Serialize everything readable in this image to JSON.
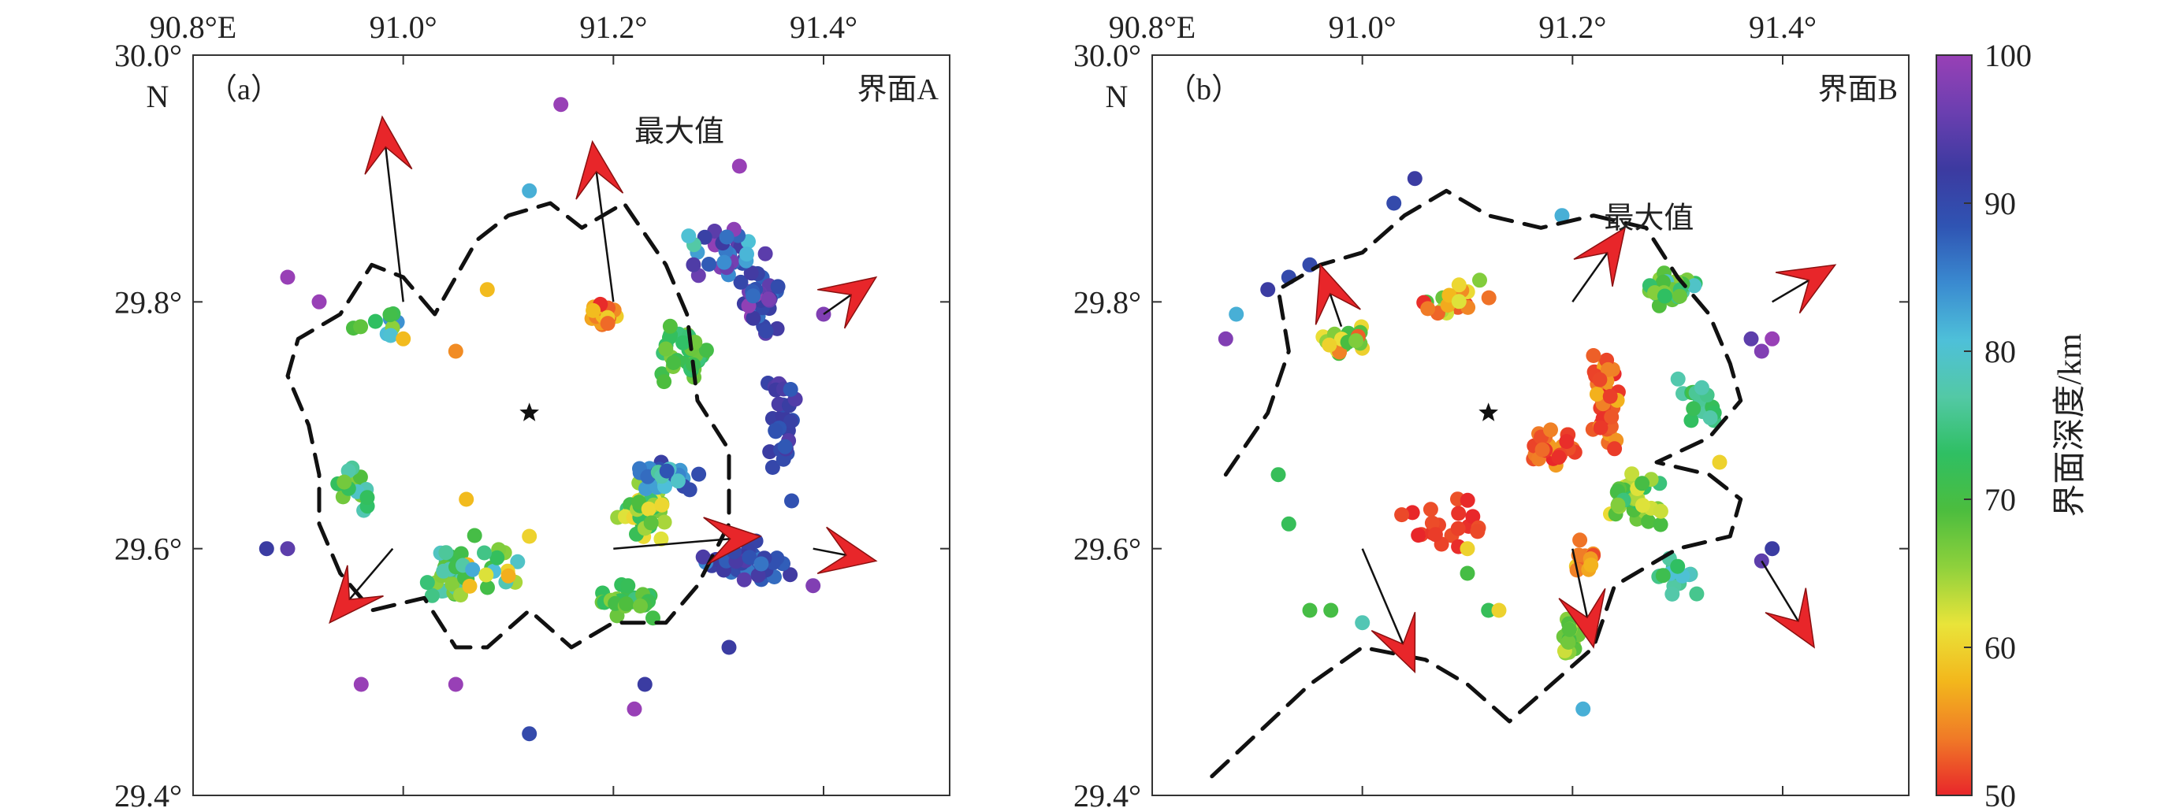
{
  "chart_data": [
    {
      "type": "scatter",
      "panel_label": "（a）",
      "panel_title": "界面A",
      "annotation": "最大值",
      "x_ticks": [
        "90.8°E",
        "91.0°",
        "91.2°",
        "91.4°"
      ],
      "y_ticks": [
        "30.0°",
        "29.8°",
        "29.6°",
        "29.4°"
      ],
      "y_unit_label": "N",
      "xlim": [
        90.8,
        91.52
      ],
      "ylim": [
        29.4,
        30.0
      ],
      "center_marker": [
        91.12,
        29.71
      ],
      "point_groups": [
        {
          "center": [
            91.34,
            29.8
          ],
          "spread": [
            0.025,
            0.035
          ],
          "n": 40,
          "depth": [
            85,
            100
          ]
        },
        {
          "center": [
            91.31,
            29.84
          ],
          "spread": [
            0.05,
            0.03
          ],
          "n": 30,
          "depth": [
            75,
            100
          ]
        },
        {
          "center": [
            91.36,
            29.69
          ],
          "spread": [
            0.02,
            0.07
          ],
          "n": 30,
          "depth": [
            88,
            95
          ]
        },
        {
          "center": [
            91.33,
            29.59
          ],
          "spread": [
            0.05,
            0.02
          ],
          "n": 45,
          "depth": [
            85,
            95
          ]
        },
        {
          "center": [
            91.27,
            29.76
          ],
          "spread": [
            0.04,
            0.03
          ],
          "n": 35,
          "depth": [
            65,
            75
          ]
        },
        {
          "center": [
            91.19,
            29.79
          ],
          "spread": [
            0.02,
            0.015
          ],
          "n": 25,
          "depth": [
            50,
            60
          ]
        },
        {
          "center": [
            91.23,
            29.63
          ],
          "spread": [
            0.03,
            0.03
          ],
          "n": 45,
          "depth": [
            60,
            75
          ]
        },
        {
          "center": [
            91.25,
            29.66
          ],
          "spread": [
            0.04,
            0.02
          ],
          "n": 30,
          "depth": [
            75,
            92
          ]
        },
        {
          "center": [
            91.21,
            29.56
          ],
          "spread": [
            0.04,
            0.02
          ],
          "n": 25,
          "depth": [
            65,
            75
          ]
        },
        {
          "center": [
            91.04,
            29.58
          ],
          "spread": [
            0.03,
            0.03
          ],
          "n": 25,
          "depth": [
            65,
            80
          ]
        },
        {
          "center": [
            90.95,
            29.65
          ],
          "spread": [
            0.03,
            0.03
          ],
          "n": 15,
          "depth": [
            65,
            80
          ]
        },
        {
          "center": [
            90.97,
            29.78
          ],
          "spread": [
            0.04,
            0.02
          ],
          "n": 10,
          "depth": [
            65,
            85
          ]
        },
        {
          "center": [
            91.08,
            29.58
          ],
          "spread": [
            0.06,
            0.04
          ],
          "n": 20,
          "depth": [
            55,
            85
          ]
        }
      ],
      "sparse_points": [
        {
          "lon": 90.89,
          "lat": 29.82,
          "depth": 100
        },
        {
          "lon": 90.92,
          "lat": 29.8,
          "depth": 100
        },
        {
          "lon": 90.89,
          "lat": 29.6,
          "depth": 95
        },
        {
          "lon": 90.87,
          "lat": 29.6,
          "depth": 92
        },
        {
          "lon": 90.96,
          "lat": 29.49,
          "depth": 100
        },
        {
          "lon": 91.05,
          "lat": 29.49,
          "depth": 100
        },
        {
          "lon": 91.12,
          "lat": 29.45,
          "depth": 90
        },
        {
          "lon": 91.22,
          "lat": 29.47,
          "depth": 100
        },
        {
          "lon": 91.23,
          "lat": 29.49,
          "depth": 92
        },
        {
          "lon": 91.31,
          "lat": 29.52,
          "depth": 92
        },
        {
          "lon": 91.15,
          "lat": 29.96,
          "depth": 100
        },
        {
          "lon": 91.32,
          "lat": 29.91,
          "depth": 100
        },
        {
          "lon": 91.12,
          "lat": 29.89,
          "depth": 82
        },
        {
          "lon": 91.05,
          "lat": 29.76,
          "depth": 55
        },
        {
          "lon": 91.08,
          "lat": 29.81,
          "depth": 58
        },
        {
          "lon": 91.0,
          "lat": 29.77,
          "depth": 58
        },
        {
          "lon": 91.06,
          "lat": 29.64,
          "depth": 58
        },
        {
          "lon": 91.12,
          "lat": 29.61,
          "depth": 60
        },
        {
          "lon": 91.4,
          "lat": 29.79,
          "depth": 98
        },
        {
          "lon": 91.39,
          "lat": 29.57,
          "depth": 98
        }
      ],
      "contour": [
        [
          91.03,
          29.79
        ],
        [
          91.0,
          29.82
        ],
        [
          90.97,
          29.83
        ],
        [
          90.94,
          29.79
        ],
        [
          90.9,
          29.77
        ],
        [
          90.89,
          29.74
        ],
        [
          90.91,
          29.7
        ],
        [
          90.92,
          29.66
        ],
        [
          90.92,
          29.62
        ],
        [
          90.94,
          29.58
        ],
        [
          90.97,
          29.55
        ],
        [
          91.02,
          29.56
        ],
        [
          91.05,
          29.52
        ],
        [
          91.08,
          29.52
        ],
        [
          91.12,
          29.55
        ],
        [
          91.16,
          29.52
        ],
        [
          91.2,
          29.54
        ],
        [
          91.25,
          29.54
        ],
        [
          91.28,
          29.57
        ],
        [
          91.31,
          29.62
        ],
        [
          91.31,
          29.68
        ],
        [
          91.28,
          29.72
        ],
        [
          91.27,
          29.79
        ],
        [
          91.25,
          29.83
        ],
        [
          91.21,
          29.88
        ],
        [
          91.17,
          29.86
        ],
        [
          91.14,
          29.88
        ],
        [
          91.1,
          29.87
        ],
        [
          91.07,
          29.85
        ],
        [
          91.05,
          29.82
        ],
        [
          91.03,
          29.79
        ]
      ],
      "arrows": [
        {
          "from": [
            91.0,
            29.8
          ],
          "to": [
            90.98,
            29.95
          ]
        },
        {
          "from": [
            91.2,
            29.8
          ],
          "to": [
            91.18,
            29.93
          ]
        },
        {
          "from": [
            91.4,
            29.79
          ],
          "to": [
            91.45,
            29.82
          ]
        },
        {
          "from": [
            91.2,
            29.6
          ],
          "to": [
            91.34,
            29.61
          ]
        },
        {
          "from": [
            91.39,
            29.6
          ],
          "to": [
            91.45,
            29.59
          ]
        },
        {
          "from": [
            90.99,
            29.6
          ],
          "to": [
            90.93,
            29.54
          ]
        }
      ],
      "annotation_pos": [
        91.22,
        29.93
      ]
    },
    {
      "type": "scatter",
      "panel_label": "（b）",
      "panel_title": "界面B",
      "annotation": "最大值",
      "x_ticks": [
        "90.8°E",
        "91.0°",
        "91.2°",
        "91.4°"
      ],
      "y_ticks": [
        "30.0°",
        "29.8°",
        "29.6°",
        "29.4°"
      ],
      "y_unit_label": "N",
      "xlim": [
        90.8,
        91.52
      ],
      "ylim": [
        29.4,
        30.0
      ],
      "center_marker": [
        91.12,
        29.71
      ],
      "point_groups": [
        {
          "center": [
            91.29,
            29.81
          ],
          "spread": [
            0.035,
            0.02
          ],
          "n": 35,
          "depth": [
            65,
            80
          ]
        },
        {
          "center": [
            91.23,
            29.72
          ],
          "spread": [
            0.02,
            0.06
          ],
          "n": 40,
          "depth": [
            50,
            58
          ]
        },
        {
          "center": [
            91.26,
            29.64
          ],
          "spread": [
            0.04,
            0.03
          ],
          "n": 35,
          "depth": [
            60,
            75
          ]
        },
        {
          "center": [
            91.18,
            29.68
          ],
          "spread": [
            0.03,
            0.02
          ],
          "n": 25,
          "depth": [
            50,
            56
          ]
        },
        {
          "center": [
            91.21,
            29.59
          ],
          "spread": [
            0.02,
            0.02
          ],
          "n": 15,
          "depth": [
            50,
            60
          ]
        },
        {
          "center": [
            91.2,
            29.53
          ],
          "spread": [
            0.015,
            0.025
          ],
          "n": 25,
          "depth": [
            62,
            72
          ]
        },
        {
          "center": [
            91.08,
            29.62
          ],
          "spread": [
            0.05,
            0.025
          ],
          "n": 20,
          "depth": [
            50,
            52
          ]
        },
        {
          "center": [
            90.98,
            29.77
          ],
          "spread": [
            0.03,
            0.015
          ],
          "n": 25,
          "depth": [
            50,
            72
          ]
        },
        {
          "center": [
            91.09,
            29.8
          ],
          "spread": [
            0.05,
            0.02
          ],
          "n": 20,
          "depth": [
            50,
            70
          ]
        },
        {
          "center": [
            91.3,
            29.58
          ],
          "spread": [
            0.03,
            0.02
          ],
          "n": 15,
          "depth": [
            70,
            82
          ]
        },
        {
          "center": [
            91.32,
            29.72
          ],
          "spread": [
            0.03,
            0.03
          ],
          "n": 15,
          "depth": [
            70,
            78
          ]
        }
      ],
      "sparse_points": [
        {
          "lon": 90.95,
          "lat": 29.83,
          "depth": 90
        },
        {
          "lon": 90.93,
          "lat": 29.82,
          "depth": 90
        },
        {
          "lon": 90.91,
          "lat": 29.81,
          "depth": 92
        },
        {
          "lon": 90.88,
          "lat": 29.79,
          "depth": 82
        },
        {
          "lon": 90.87,
          "lat": 29.77,
          "depth": 98
        },
        {
          "lon": 91.05,
          "lat": 29.9,
          "depth": 92
        },
        {
          "lon": 91.03,
          "lat": 29.88,
          "depth": 90
        },
        {
          "lon": 91.19,
          "lat": 29.87,
          "depth": 82
        },
        {
          "lon": 91.37,
          "lat": 29.77,
          "depth": 95
        },
        {
          "lon": 91.39,
          "lat": 29.77,
          "depth": 100
        },
        {
          "lon": 91.38,
          "lat": 29.76,
          "depth": 98
        },
        {
          "lon": 91.38,
          "lat": 29.59,
          "depth": 95
        },
        {
          "lon": 91.39,
          "lat": 29.6,
          "depth": 92
        },
        {
          "lon": 90.92,
          "lat": 29.66,
          "depth": 72
        },
        {
          "lon": 90.93,
          "lat": 29.62,
          "depth": 72
        },
        {
          "lon": 90.95,
          "lat": 29.55,
          "depth": 70
        },
        {
          "lon": 90.97,
          "lat": 29.55,
          "depth": 70
        },
        {
          "lon": 91.0,
          "lat": 29.54,
          "depth": 78
        },
        {
          "lon": 91.21,
          "lat": 29.47,
          "depth": 82
        },
        {
          "lon": 91.1,
          "lat": 29.58,
          "depth": 70
        },
        {
          "lon": 91.12,
          "lat": 29.55,
          "depth": 72
        },
        {
          "lon": 91.13,
          "lat": 29.55,
          "depth": 60
        },
        {
          "lon": 91.1,
          "lat": 29.6,
          "depth": 60
        },
        {
          "lon": 91.34,
          "lat": 29.67,
          "depth": 60
        }
      ],
      "contour": [
        [
          90.87,
          29.66
        ],
        [
          90.91,
          29.71
        ],
        [
          90.93,
          29.76
        ],
        [
          90.92,
          29.81
        ],
        [
          90.96,
          29.83
        ],
        [
          91.0,
          29.84
        ],
        [
          91.04,
          29.87
        ],
        [
          91.08,
          29.89
        ],
        [
          91.12,
          29.87
        ],
        [
          91.17,
          29.86
        ],
        [
          91.22,
          29.87
        ],
        [
          91.27,
          29.86
        ],
        [
          91.3,
          29.82
        ],
        [
          91.33,
          29.79
        ],
        [
          91.35,
          29.75
        ],
        [
          91.36,
          29.72
        ],
        [
          91.33,
          29.69
        ],
        [
          91.28,
          29.67
        ],
        [
          91.33,
          29.66
        ],
        [
          91.36,
          29.64
        ],
        [
          91.35,
          29.61
        ],
        [
          91.3,
          29.6
        ],
        [
          91.24,
          29.57
        ],
        [
          91.22,
          29.52
        ],
        [
          91.18,
          29.49
        ],
        [
          91.14,
          29.46
        ],
        [
          91.1,
          29.49
        ],
        [
          91.06,
          29.51
        ],
        [
          91.0,
          29.52
        ],
        [
          90.95,
          29.49
        ],
        [
          90.9,
          29.45
        ],
        [
          90.85,
          29.41
        ]
      ],
      "arrows": [
        {
          "from": [
            90.98,
            29.78
          ],
          "to": [
            90.96,
            29.83
          ]
        },
        {
          "from": [
            91.2,
            29.8
          ],
          "to": [
            91.25,
            29.86
          ]
        },
        {
          "from": [
            91.39,
            29.8
          ],
          "to": [
            91.45,
            29.83
          ]
        },
        {
          "from": [
            91.0,
            29.6
          ],
          "to": [
            91.05,
            29.5
          ]
        },
        {
          "from": [
            91.2,
            29.6
          ],
          "to": [
            91.22,
            29.52
          ]
        },
        {
          "from": [
            91.38,
            29.59
          ],
          "to": [
            91.43,
            29.52
          ]
        }
      ],
      "annotation_pos": [
        91.23,
        29.86
      ]
    }
  ],
  "colorbar": {
    "label": "界面深度/km",
    "ticks": [
      "100",
      "90",
      "80",
      "70",
      "60",
      "50"
    ],
    "range": [
      50,
      100
    ],
    "colors": [
      "#e8262a",
      "#f07a27",
      "#f3b71c",
      "#e9e43a",
      "#8fd13c",
      "#4cbd3e",
      "#2fbf63",
      "#53c9a5",
      "#4ec0d9",
      "#3a8ad0",
      "#2f54b3",
      "#3c3aa0",
      "#6b3fb0",
      "#9840b6"
    ]
  }
}
